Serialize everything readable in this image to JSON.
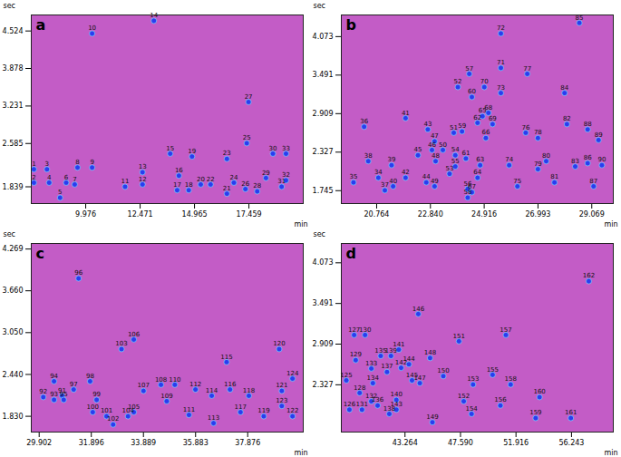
{
  "chart_data": [
    {
      "type": "scatter",
      "title": "a",
      "x_label": "min",
      "y_label": "sec",
      "color": "#2a3cf0",
      "xlim": [
        7.48,
        19.95
      ],
      "ylim": [
        1.55,
        4.8
      ],
      "xticks": [
        9.976,
        12.471,
        14.965,
        17.459
      ],
      "yticks": [
        1.839,
        2.585,
        3.231,
        3.878,
        4.524
      ],
      "labels": [
        1,
        2,
        3,
        4,
        5,
        6,
        7,
        8,
        9,
        10,
        11,
        12,
        13,
        14,
        15,
        16,
        17,
        18,
        19,
        20,
        21,
        22,
        23,
        24,
        25,
        26,
        27,
        28,
        29,
        30,
        31,
        32,
        33
      ],
      "x": [
        7.6,
        7.6,
        8.2,
        8.3,
        8.8,
        9.08,
        9.47,
        9.6,
        10.27,
        10.27,
        11.78,
        12.58,
        12.58,
        13.1,
        13.85,
        14.25,
        14.17,
        14.7,
        14.85,
        15.25,
        16.45,
        15.7,
        16.45,
        16.77,
        17.36,
        17.3,
        17.44,
        17.84,
        18.24,
        18.56,
        18.96,
        19.16,
        19.16
      ],
      "values": [
        2.14,
        1.91,
        2.14,
        1.91,
        1.65,
        1.91,
        1.88,
        2.17,
        2.17,
        4.48,
        1.84,
        1.88,
        2.09,
        4.7,
        2.41,
        2.03,
        1.78,
        1.78,
        2.36,
        1.88,
        1.72,
        1.88,
        2.32,
        1.91,
        2.59,
        1.8,
        3.3,
        1.76,
        1.99,
        2.41,
        1.84,
        1.95,
        2.41
      ]
    },
    {
      "type": "scatter",
      "title": "b",
      "x_label": "min",
      "y_label": "sec",
      "color": "#2a3cf0",
      "xlim": [
        19.4,
        29.9
      ],
      "ylim": [
        1.55,
        4.4
      ],
      "xticks": [
        20.764,
        {
          "value": 22.84,
          "label": "22.840"
        },
        24.916,
        26.993,
        29.069
      ],
      "yticks": [
        1.745,
        2.327,
        2.909,
        3.491,
        4.073
      ],
      "labels": [
        34,
        35,
        36,
        37,
        38,
        39,
        40,
        41,
        42,
        43,
        44,
        45,
        46,
        47,
        48,
        49,
        50,
        51,
        52,
        53,
        54,
        55,
        56,
        57,
        58,
        59,
        60,
        61,
        62,
        63,
        64,
        65,
        66,
        67,
        68,
        69,
        70,
        71,
        72,
        73,
        74,
        75,
        76,
        77,
        78,
        79,
        80,
        81,
        82,
        83,
        84,
        85,
        86,
        87,
        88,
        89,
        90
      ],
      "x": [
        20.83,
        19.87,
        20.28,
        21.08,
        20.44,
        21.34,
        21.4,
        21.88,
        21.88,
        22.74,
        22.68,
        22.36,
        22.9,
        23.0,
        23.04,
        23.0,
        23.32,
        23.74,
        23.9,
        23.58,
        23.8,
        23.8,
        24.28,
        24.34,
        24.28,
        24.06,
        24.44,
        24.21,
        24.66,
        24.76,
        24.66,
        24.85,
        24.98,
        24.44,
        25.08,
        25.24,
        24.92,
        25.56,
        25.56,
        25.56,
        25.88,
        26.2,
        26.52,
        26.58,
        26.99,
        26.99,
        27.31,
        27.63,
        28.11,
        28.43,
        28.02,
        28.59,
        28.91,
        29.14,
        28.91,
        29.33,
        29.46
      ],
      "values": [
        1.94,
        1.87,
        2.71,
        1.75,
        2.19,
        2.13,
        1.81,
        2.84,
        1.94,
        2.67,
        1.87,
        2.28,
        2.36,
        2.49,
        2.19,
        1.81,
        2.36,
        2.62,
        3.31,
        2.0,
        2.28,
        2.11,
        1.77,
        3.51,
        1.64,
        2.64,
        3.16,
        2.23,
        2.77,
        2.13,
        1.94,
        2.87,
        2.54,
        1.72,
        2.92,
        2.75,
        3.31,
        3.6,
        4.12,
        3.22,
        2.13,
        1.81,
        2.62,
        3.51,
        2.54,
        2.07,
        2.19,
        1.87,
        2.75,
        2.11,
        3.22,
        4.28,
        2.16,
        1.81,
        2.67,
        2.51,
        2.13
      ]
    },
    {
      "type": "scatter",
      "title": "c",
      "x_label": "min",
      "y_label": "sec",
      "color": "#2a3cf0",
      "xlim": [
        29.6,
        40.0
      ],
      "ylim": [
        1.6,
        4.35
      ],
      "xticks": [
        29.902,
        31.896,
        33.889,
        35.883,
        37.876
      ],
      "yticks": [
        {
          "value": 1.83,
          "label": "1.830"
        },
        {
          "value": 2.44,
          "label": "2.440"
        },
        {
          "value": 3.05,
          "label": "3.050"
        },
        {
          "value": 3.66,
          "label": "3.660"
        },
        4.269
      ],
      "labels": [
        91,
        92,
        93,
        94,
        95,
        96,
        97,
        98,
        99,
        100,
        101,
        102,
        103,
        104,
        105,
        106,
        107,
        108,
        109,
        110,
        111,
        112,
        113,
        114,
        115,
        116,
        117,
        118,
        119,
        120,
        121,
        122,
        123,
        124
      ],
      "x": [
        30.78,
        30.06,
        30.47,
        30.47,
        30.84,
        31.41,
        31.22,
        31.85,
        32.1,
        31.95,
        32.48,
        32.73,
        33.05,
        33.3,
        33.52,
        33.52,
        33.89,
        34.56,
        34.78,
        35.09,
        35.63,
        35.88,
        36.57,
        36.5,
        37.07,
        37.2,
        37.6,
        37.92,
        38.49,
        39.08,
        39.18,
        39.59,
        39.18,
        39.59
      ],
      "values": [
        2.13,
        2.11,
        2.07,
        2.34,
        2.07,
        3.84,
        2.22,
        2.34,
        2.07,
        1.89,
        1.83,
        1.71,
        2.81,
        1.83,
        1.89,
        2.95,
        2.2,
        2.29,
        2.05,
        2.29,
        1.85,
        2.22,
        1.73,
        2.13,
        2.62,
        2.22,
        1.89,
        2.13,
        1.83,
        2.81,
        2.2,
        1.83,
        1.98,
        2.38
      ]
    },
    {
      "type": "scatter",
      "title": "d",
      "x_label": "min",
      "y_label": "sec",
      "color": "#2a3cf0",
      "xlim": [
        38.3,
        59.5
      ],
      "ylim": [
        1.65,
        4.35
      ],
      "xticks": [
        43.264,
        {
          "value": 47.59,
          "label": "47.590"
        },
        51.916,
        56.243
      ],
      "yticks": [
        2.327,
        2.909,
        3.491,
        4.073
      ],
      "labels": [
        125,
        126,
        127,
        128,
        129,
        130,
        131,
        132,
        133,
        134,
        135,
        136,
        137,
        138,
        139,
        140,
        141,
        142,
        143,
        144,
        145,
        146,
        147,
        148,
        149,
        150,
        151,
        152,
        153,
        154,
        155,
        156,
        157,
        158,
        159,
        160,
        161,
        162
      ],
      "x": [
        38.69,
        38.93,
        39.3,
        39.73,
        39.42,
        40.15,
        39.91,
        40.64,
        40.64,
        40.76,
        41.37,
        41.13,
        41.86,
        42.04,
        42.17,
        42.59,
        42.78,
        42.96,
        42.59,
        43.57,
        43.81,
        44.3,
        44.42,
        45.22,
        45.4,
        46.25,
        47.47,
        47.84,
        48.57,
        48.45,
        50.09,
        50.7,
        51.13,
        51.5,
        53.45,
        53.75,
        56.19,
        57.59
      ],
      "values": [
        2.39,
        1.97,
        3.04,
        2.21,
        2.68,
        3.04,
        1.97,
        2.09,
        2.56,
        2.35,
        2.74,
        2.03,
        2.51,
        1.91,
        2.74,
        2.11,
        2.83,
        2.57,
        1.97,
        2.62,
        2.39,
        3.34,
        2.35,
        2.71,
        1.79,
        2.45,
        2.95,
        2.09,
        2.33,
        1.91,
        2.47,
        2.03,
        3.04,
        2.33,
        1.85,
        2.15,
        1.85,
        3.81
      ]
    }
  ]
}
